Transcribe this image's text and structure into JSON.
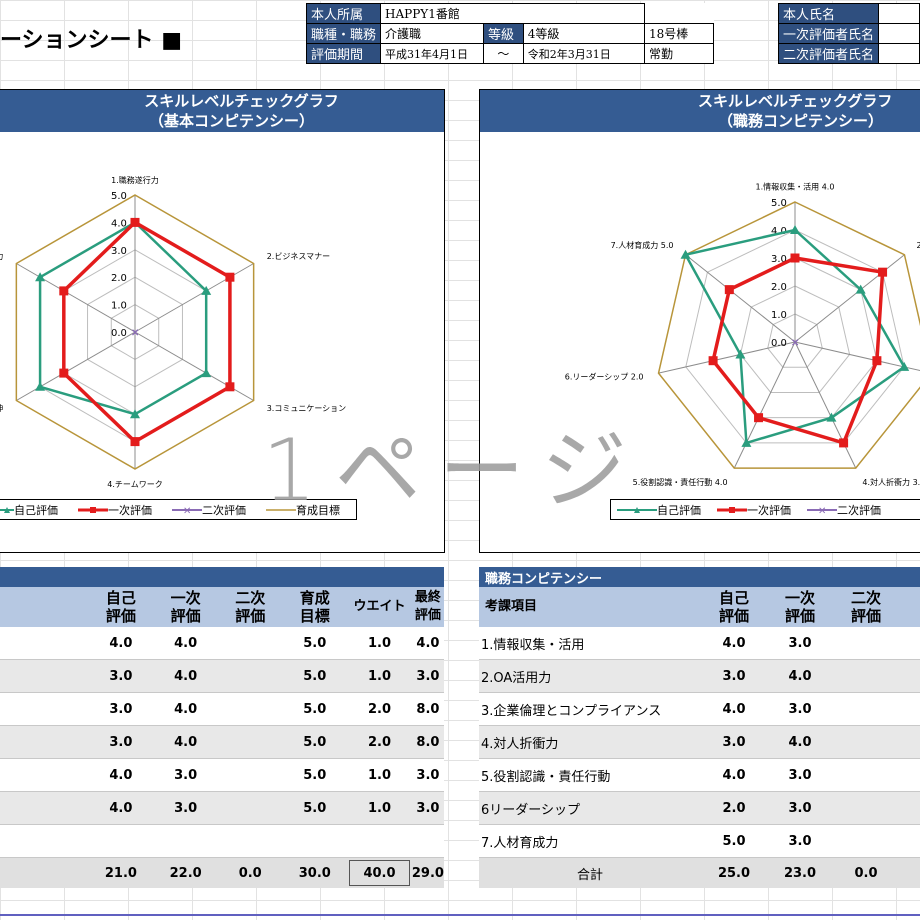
{
  "title": "ーションシート ■",
  "header": {
    "labels": [
      "本人所属",
      "職種・職務",
      "評価期間"
    ],
    "affiliation": "HAPPY1番館",
    "job": "介護職",
    "grade_label": "等級",
    "grade": "4等級",
    "salary": "18号棒",
    "period_start": "平成31年4月1日",
    "period_sep": "～",
    "period_end": "令和2年3月31日",
    "employment": "常勤",
    "right_labels": [
      "本人氏名",
      "一次評価者氏名",
      "二次評価者氏名"
    ]
  },
  "watermark": "1ページ",
  "colors": {
    "self": "#2a9d7e",
    "first": "#e31c1c",
    "second": "#8a6bb5",
    "target": "#b8953a",
    "header_blue": "#355c93",
    "header_light": "#b6c8e2"
  },
  "legend": [
    "自己評価",
    "一次評価",
    "二次評価",
    "育成目標"
  ],
  "chart_left": {
    "title_line1": "スキルレベルチェックグラフ",
    "title_line2": "（基本コンピテンシー）",
    "axis_ticks": [
      "0.0",
      "1.0",
      "2.0",
      "3.0",
      "4.0",
      "5.0"
    ],
    "axis_labels": [
      "1.職務遂行力",
      "2.ビジネスマナー",
      "3.コミュニケーション",
      "4.チームワーク",
      "精神",
      "力"
    ]
  },
  "chart_right": {
    "title_line1": "スキルレベルチェックグラフ",
    "title_line2": "（職務コンピテンシー）",
    "axis_ticks": [
      "0.0",
      "1.0",
      "2.0",
      "3.0",
      "4.0",
      "5.0"
    ],
    "axis_labels": [
      "1.情報収集・活用 4.0",
      "2.(",
      "",
      "4.対人折衝力 3.0",
      "5.役割認識・責任行動 4.0",
      "6.リーダーシップ 2.0",
      "7.人材育成力 5.0"
    ]
  },
  "chart_data": [
    {
      "type": "radar",
      "title": "スキルレベルチェックグラフ （基本コンピテンシー）",
      "categories": [
        "1.職務遂行力",
        "2.ビジネスマナー",
        "3.コミュニケーション",
        "4.チームワーク",
        "5",
        "6"
      ],
      "range": [
        0,
        5
      ],
      "series": [
        {
          "name": "自己評価",
          "values": [
            4.0,
            3.0,
            3.0,
            3.0,
            4.0,
            4.0
          ]
        },
        {
          "name": "一次評価",
          "values": [
            4.0,
            4.0,
            4.0,
            4.0,
            3.0,
            3.0
          ]
        },
        {
          "name": "二次評価",
          "values": [
            0,
            0,
            0,
            0,
            0,
            0
          ]
        },
        {
          "name": "育成目標",
          "values": [
            5.0,
            5.0,
            5.0,
            5.0,
            5.0,
            5.0
          ]
        }
      ]
    },
    {
      "type": "radar",
      "title": "スキルレベルチェックグラフ （職務コンピテンシー）",
      "categories": [
        "1.情報収集・活用",
        "2.OA活用力",
        "3.企業倫理とコンプライアンス",
        "4.対人折衝力",
        "5.役割認識・責任行動",
        "6.リーダーシップ",
        "7.人材育成力"
      ],
      "range": [
        0,
        5
      ],
      "series": [
        {
          "name": "自己評価",
          "values": [
            4.0,
            3.0,
            4.0,
            3.0,
            4.0,
            2.0,
            5.0
          ]
        },
        {
          "name": "一次評価",
          "values": [
            3.0,
            4.0,
            3.0,
            4.0,
            3.0,
            3.0,
            3.0
          ]
        },
        {
          "name": "二次評価",
          "values": [
            0,
            0,
            0,
            0,
            0,
            0,
            0
          ]
        },
        {
          "name": "育成目標",
          "values": [
            5.0,
            5.0,
            5.0,
            5.0,
            5.0,
            5.0,
            5.0
          ]
        }
      ]
    }
  ],
  "table_left": {
    "headers": [
      "自己\n評価",
      "一次\n評価",
      "二次\n評価",
      "育成\n目標",
      "ウエイト",
      "最終評価"
    ],
    "rows": [
      [
        "4.0",
        "4.0",
        "",
        "5.0",
        "1.0",
        "4.0"
      ],
      [
        "3.0",
        "4.0",
        "",
        "5.0",
        "1.0",
        "3.0"
      ],
      [
        "3.0",
        "4.0",
        "",
        "5.0",
        "2.0",
        "8.0"
      ],
      [
        "3.0",
        "4.0",
        "",
        "5.0",
        "2.0",
        "8.0"
      ],
      [
        "4.0",
        "3.0",
        "",
        "5.0",
        "1.0",
        "3.0"
      ],
      [
        "4.0",
        "3.0",
        "",
        "5.0",
        "1.0",
        "3.0"
      ],
      [
        "",
        "",
        "",
        "",
        "",
        ""
      ]
    ],
    "total": [
      "21.0",
      "22.0",
      "0.0",
      "30.0",
      "40.0",
      "29.0"
    ]
  },
  "table_right": {
    "section": "職務コンピテンシー",
    "headers": [
      "考課項目",
      "自己\n評価",
      "一次\n評価",
      "二次\n評価"
    ],
    "rows": [
      [
        "1.情報収集・活用",
        "4.0",
        "3.0",
        ""
      ],
      [
        "2.OA活用力",
        "3.0",
        "4.0",
        ""
      ],
      [
        "3.企業倫理とコンプライアンス",
        "4.0",
        "3.0",
        ""
      ],
      [
        "4.対人折衝力",
        "3.0",
        "4.0",
        ""
      ],
      [
        "5.役割認識・責任行動",
        "4.0",
        "3.0",
        ""
      ],
      [
        "6リーダーシップ",
        "2.0",
        "3.0",
        ""
      ],
      [
        "7.人材育成力",
        "5.0",
        "3.0",
        ""
      ]
    ],
    "total": [
      "合計",
      "25.0",
      "23.0",
      "0.0"
    ]
  }
}
